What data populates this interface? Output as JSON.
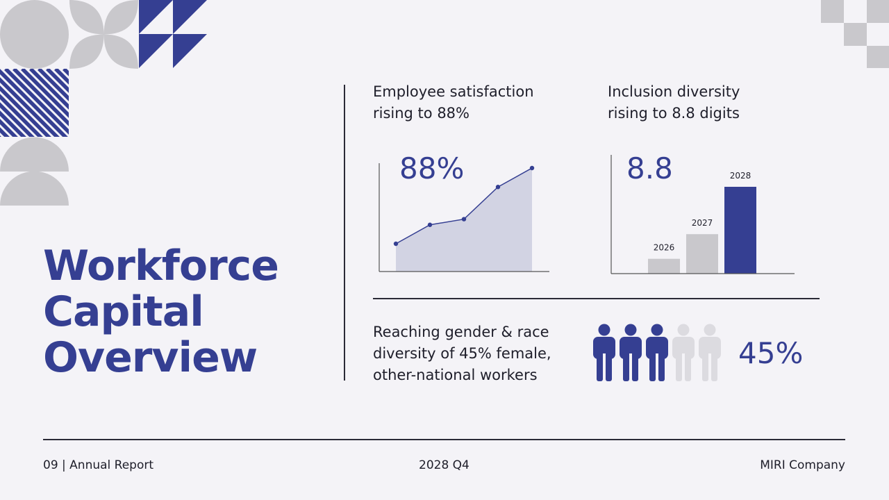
{
  "title_lines": [
    "Workforce",
    "Capital",
    "Overview"
  ],
  "metrics": {
    "satisfaction": {
      "label_lines": [
        "Employee satisfaction",
        "rising to 88%"
      ],
      "value": "88%"
    },
    "inclusion": {
      "label_lines": [
        "Inclusion diversity",
        "rising to 8.8 digits"
      ],
      "value": "8.8"
    },
    "gender": {
      "label_lines": [
        "Reaching gender & race",
        "diversity of 45% female,",
        "other-national workers"
      ],
      "value": "45%"
    }
  },
  "chart_data": [
    {
      "type": "area",
      "y": [
        1,
        2,
        2.3,
        4,
        5
      ],
      "xlabel": "",
      "ylabel": ""
    },
    {
      "type": "bar",
      "categories": [
        "2026",
        "2027",
        "2028"
      ],
      "values": [
        1.5,
        4,
        8.8
      ],
      "highlight": "2028"
    },
    {
      "type": "pictogram",
      "total": 5,
      "filled": 3
    }
  ],
  "footer": {
    "left": "09 | Annual Report",
    "center": "2028 Q4",
    "right": "MIRI Company"
  },
  "colors": {
    "accent": "#353f92",
    "muted": "#c9c8cc",
    "background": "#f4f3f7",
    "area_fill": "#d2d3e3"
  }
}
